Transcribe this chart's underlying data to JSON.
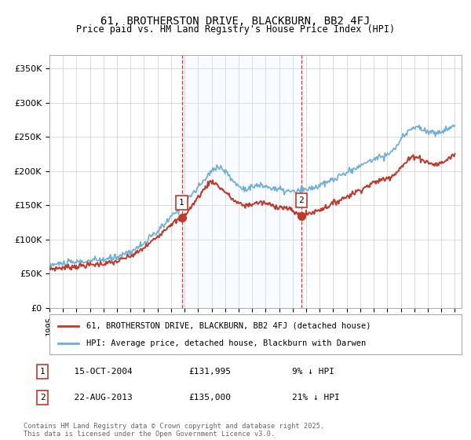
{
  "title": "61, BROTHERSTON DRIVE, BLACKBURN, BB2 4FJ",
  "subtitle": "Price paid vs. HM Land Registry's House Price Index (HPI)",
  "ylabel_ticks": [
    "£0",
    "£50K",
    "£100K",
    "£150K",
    "£200K",
    "£250K",
    "£300K",
    "£350K"
  ],
  "ylim": [
    0,
    370000
  ],
  "yticks": [
    0,
    50000,
    100000,
    150000,
    200000,
    250000,
    300000,
    350000
  ],
  "sale1_date_x": 2004.79,
  "sale1_price": 131995,
  "sale2_date_x": 2013.64,
  "sale2_price": 135000,
  "legend_line1": "61, BROTHERSTON DRIVE, BLACKBURN, BB2 4FJ (detached house)",
  "legend_line2": "HPI: Average price, detached house, Blackburn with Darwen",
  "footer": "Contains HM Land Registry data © Crown copyright and database right 2025.\nThis data is licensed under the Open Government Licence v3.0.",
  "hpi_color": "#6dafd6",
  "price_color": "#c0392b",
  "shade_color": "#ddeeff",
  "marker_color": "#c0392b",
  "xmin": 1995,
  "xmax": 2025.5,
  "hpi_years": [
    1995.0,
    1995.5,
    1996.0,
    1996.5,
    1997.0,
    1997.5,
    1998.0,
    1998.5,
    1999.0,
    1999.5,
    2000.0,
    2000.5,
    2001.0,
    2001.5,
    2002.0,
    2002.5,
    2003.0,
    2003.5,
    2004.0,
    2004.5,
    2005.0,
    2005.5,
    2006.0,
    2006.5,
    2007.0,
    2007.25,
    2007.5,
    2007.75,
    2008.0,
    2008.25,
    2008.5,
    2008.75,
    2009.0,
    2009.5,
    2010.0,
    2010.5,
    2011.0,
    2011.5,
    2012.0,
    2012.5,
    2013.0,
    2013.5,
    2014.0,
    2014.5,
    2015.0,
    2015.5,
    2016.0,
    2016.5,
    2017.0,
    2017.5,
    2018.0,
    2018.5,
    2019.0,
    2019.5,
    2020.0,
    2020.5,
    2021.0,
    2021.5,
    2022.0,
    2022.5,
    2023.0,
    2023.5,
    2024.0,
    2024.5,
    2025.0
  ],
  "hpi_vals": [
    63000,
    64000,
    65000,
    66000,
    67000,
    68000,
    69000,
    70000,
    71000,
    72000,
    75000,
    79000,
    83000,
    88000,
    95000,
    103000,
    112000,
    122000,
    133000,
    143000,
    154000,
    165000,
    176000,
    188000,
    200000,
    205000,
    207000,
    204000,
    200000,
    194000,
    188000,
    183000,
    178000,
    175000,
    177000,
    179000,
    178000,
    175000,
    173000,
    171000,
    170000,
    171000,
    173000,
    176000,
    179000,
    183000,
    188000,
    193000,
    198000,
    203000,
    208000,
    213000,
    218000,
    222000,
    224000,
    232000,
    245000,
    258000,
    265000,
    262000,
    258000,
    256000,
    258000,
    262000,
    268000
  ],
  "price_years": [
    1995.0,
    1995.5,
    1996.0,
    1996.5,
    1997.0,
    1997.5,
    1998.0,
    1998.5,
    1999.0,
    1999.5,
    2000.0,
    2000.5,
    2001.0,
    2001.5,
    2002.0,
    2002.5,
    2003.0,
    2003.5,
    2004.0,
    2004.5,
    2004.79,
    2005.0,
    2005.5,
    2006.0,
    2006.5,
    2007.0,
    2007.5,
    2008.0,
    2008.5,
    2009.0,
    2009.5,
    2010.0,
    2010.5,
    2011.0,
    2011.5,
    2012.0,
    2012.5,
    2013.0,
    2013.5,
    2013.64,
    2014.0,
    2014.5,
    2015.0,
    2015.5,
    2016.0,
    2016.5,
    2017.0,
    2017.5,
    2018.0,
    2018.5,
    2019.0,
    2019.5,
    2020.0,
    2020.5,
    2021.0,
    2021.5,
    2022.0,
    2022.5,
    2023.0,
    2023.5,
    2024.0,
    2024.5,
    2025.0
  ],
  "price_vals": [
    57000,
    58000,
    59000,
    60000,
    61000,
    62000,
    63000,
    64000,
    65000,
    66000,
    68000,
    72000,
    76000,
    81000,
    88000,
    96000,
    105000,
    114000,
    123000,
    128000,
    131995,
    136000,
    148000,
    162000,
    175000,
    185000,
    178000,
    170000,
    160000,
    153000,
    150000,
    152000,
    154000,
    153000,
    150000,
    148000,
    146000,
    142000,
    136000,
    135000,
    137000,
    140000,
    144000,
    148000,
    153000,
    158000,
    163000,
    168000,
    173000,
    178000,
    183000,
    187000,
    190000,
    196000,
    205000,
    215000,
    222000,
    218000,
    213000,
    210000,
    212000,
    218000,
    225000
  ]
}
